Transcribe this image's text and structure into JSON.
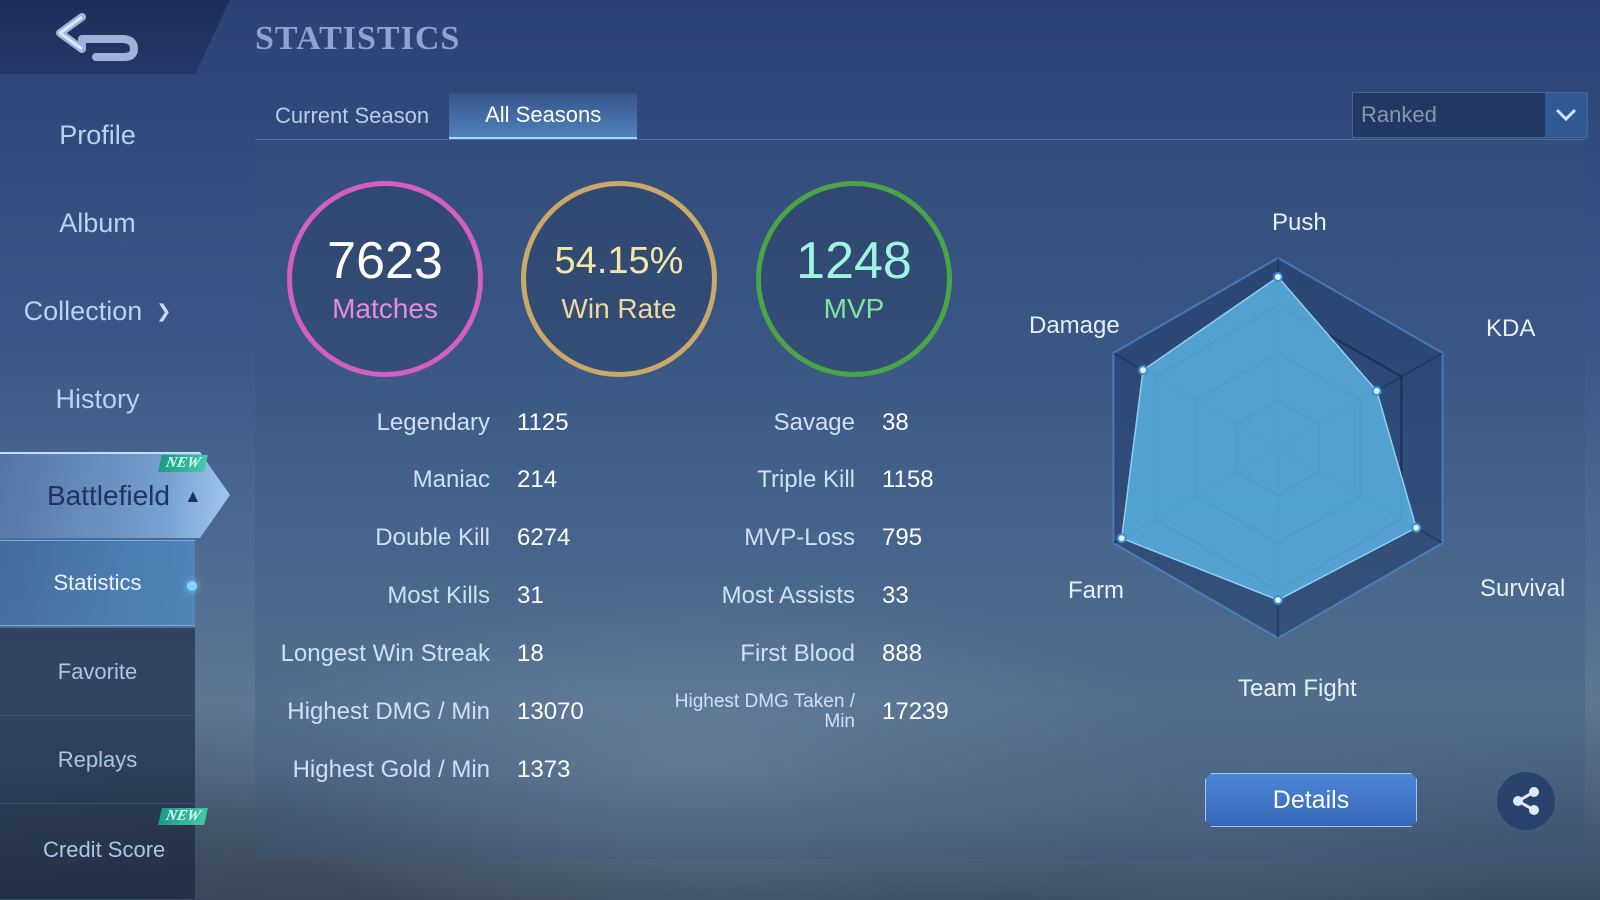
{
  "header": {
    "title": "STATISTICS"
  },
  "sidebar": {
    "items": [
      {
        "label": "Profile"
      },
      {
        "label": "Album"
      },
      {
        "label": "Collection"
      },
      {
        "label": "History"
      },
      {
        "label": "Battlefield"
      }
    ],
    "sub_items": [
      {
        "label": "Statistics"
      },
      {
        "label": "Favorite"
      },
      {
        "label": "Replays"
      },
      {
        "label": "Credit Score"
      }
    ],
    "badges": {
      "battlefield": "NEW",
      "credit_score": "NEW"
    }
  },
  "tabs": [
    {
      "label": "Current Season"
    },
    {
      "label": "All Seasons",
      "active": true
    }
  ],
  "mode_select": {
    "value": "Ranked"
  },
  "summary": {
    "matches": {
      "value": "7623",
      "label": "Matches"
    },
    "win_rate": {
      "value": "54.15%",
      "label": "Win Rate"
    },
    "mvp": {
      "value": "1248",
      "label": "MVP"
    }
  },
  "stats_left": [
    {
      "label": "Legendary",
      "value": "1125"
    },
    {
      "label": "Maniac",
      "value": "214"
    },
    {
      "label": "Double Kill",
      "value": "6274"
    },
    {
      "label": "Most Kills",
      "value": "31"
    },
    {
      "label": "Longest Win Streak",
      "value": "18"
    },
    {
      "label": "Highest DMG / Min",
      "value": "13070"
    },
    {
      "label": "Highest Gold / Min",
      "value": "1373"
    }
  ],
  "stats_right": [
    {
      "label": "Savage",
      "value": "38"
    },
    {
      "label": "Triple Kill",
      "value": "1158"
    },
    {
      "label": "MVP-Loss",
      "value": "795"
    },
    {
      "label": "Most Assists",
      "value": "33"
    },
    {
      "label": "First Blood",
      "value": "888"
    },
    {
      "label": "Highest DMG Taken / Min",
      "value": "17239"
    }
  ],
  "radar": {
    "axes": [
      "Push",
      "KDA",
      "Survival",
      "Team Fight",
      "Farm",
      "Damage"
    ],
    "values": [
      0.9,
      0.6,
      0.84,
      0.8,
      0.95,
      0.82
    ],
    "fill_color": "#5ab4e4"
  },
  "actions": {
    "details_label": "Details",
    "share_icon": "share-icon"
  },
  "colors": {
    "matches_ring": "#d35fc0",
    "winrate_ring": "#caa86a",
    "mvp_ring": "#4ba548",
    "accent": "#4d86d6"
  }
}
